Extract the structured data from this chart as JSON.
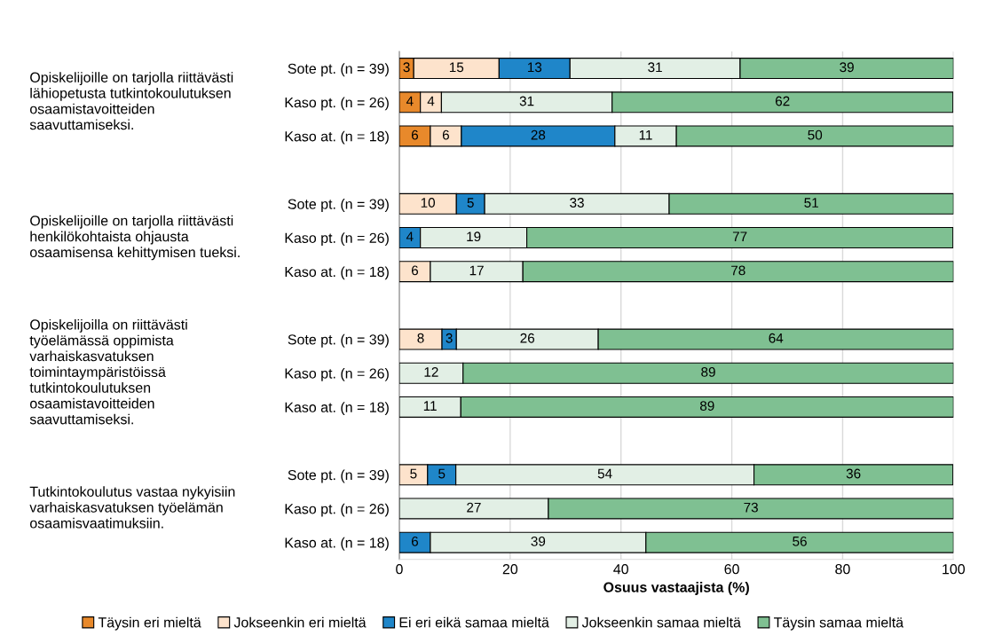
{
  "chart_data": {
    "type": "bar",
    "orientation": "horizontal",
    "stacked": true,
    "categories": [
      "Sote pt. (n = 39)",
      "Kaso pt. (n = 26)",
      "Kaso at. (n = 18)",
      null,
      "Sote pt. (n = 39)",
      "Kaso pt. (n = 26)",
      "Kaso at. (n = 18)",
      null,
      "Sote pt. (n = 39)",
      "Kaso pt. (n = 26)",
      "Kaso at. (n = 18)",
      null,
      "Sote pt. (n = 39)",
      "Kaso pt. (n = 26)",
      "Kaso at. (n = 18)"
    ],
    "series": [
      {
        "name": "Täysin eri mieltä",
        "color": "#e8892b",
        "values": [
          2.6,
          3.8,
          5.6,
          null,
          null,
          null,
          null,
          null,
          null,
          null,
          null,
          null,
          null,
          null,
          null
        ],
        "value_labels": [
          "3",
          "4",
          "6",
          null,
          null,
          null,
          null,
          null,
          null,
          null,
          null,
          null,
          null,
          null,
          null
        ]
      },
      {
        "name": "Jokseenkin eri mieltä",
        "color": "#fde3cc",
        "values": [
          15.4,
          3.8,
          5.6,
          null,
          10.3,
          null,
          5.6,
          null,
          7.7,
          null,
          null,
          null,
          5.1,
          null,
          null
        ],
        "value_labels": [
          "15",
          "4",
          "6",
          null,
          "10",
          null,
          "6",
          null,
          "8",
          null,
          null,
          null,
          "5",
          null,
          null
        ]
      },
      {
        "name": "Ei eri eikä samaa mieltä",
        "color": "#1f86c9",
        "values": [
          12.8,
          null,
          27.7,
          null,
          5.1,
          3.8,
          null,
          null,
          2.6,
          null,
          null,
          null,
          5.1,
          null,
          5.6
        ],
        "value_labels": [
          "13",
          null,
          "28",
          null,
          "5",
          "4",
          null,
          null,
          "3",
          null,
          null,
          null,
          "5",
          null,
          "6"
        ]
      },
      {
        "name": "Jokseenkin samaa mieltä",
        "color": "#e2efe5",
        "values": [
          30.7,
          30.8,
          11.1,
          null,
          33.3,
          19.2,
          16.7,
          null,
          25.6,
          11.5,
          11.1,
          null,
          53.8,
          26.9,
          38.9
        ],
        "value_labels": [
          "31",
          "31",
          "11",
          null,
          "33",
          "19",
          "17",
          null,
          "26",
          "12",
          "11",
          null,
          "54",
          "27",
          "39"
        ]
      },
      {
        "name": "Täysin samaa mieltä",
        "color": "#7fc092",
        "values": [
          38.5,
          61.5,
          50.0,
          null,
          51.3,
          76.9,
          77.7,
          null,
          64.1,
          88.5,
          88.9,
          null,
          35.9,
          73.1,
          55.5
        ],
        "value_labels": [
          "39",
          "62",
          "50",
          null,
          "51",
          "77",
          "78",
          null,
          "64",
          "89",
          "89",
          null,
          "36",
          "73",
          "56"
        ]
      }
    ],
    "xlabel": "Osuus vastaajista (%)",
    "xlim": [
      0,
      100
    ],
    "xticks": [
      0,
      20,
      40,
      60,
      80,
      100
    ],
    "grid": "x",
    "legend": "bottom",
    "annotations": [
      "Opiskelijoille on tarjolla riittävästi\nlähiopetusta tutkintokoulutuksen\nosaamistavoitteiden\nsaavuttamiseksi.",
      "Opiskelijoille on tarjolla riittävästi\nhenkilökohtaista ohjausta\nosaamisensa kehittymisen tueksi.",
      "Opiskelijoilla on riittävästi\ntyöelämässä oppimista\nvarhaiskasvatuksen\ntoimintaympäristöissä\ntutkintokoulutuksen\nosaamistavoitteiden\nsaavuttamiseksi.",
      "Tutkintokoulutus vastaa nykyisiin\nvarhaiskasvatuksen työelämän\nosaamisvaatimuksiin."
    ]
  }
}
